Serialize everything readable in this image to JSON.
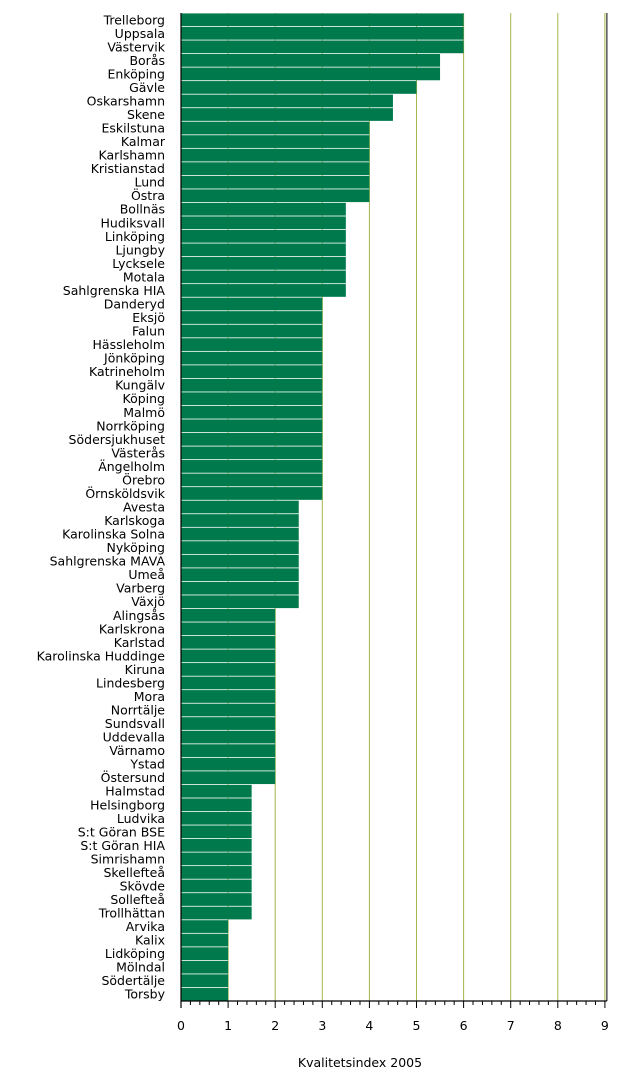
{
  "chart_data": {
    "type": "bar",
    "orientation": "horizontal",
    "xlabel": "Kvalitetsindex 2005",
    "xlim": [
      0,
      9
    ],
    "xticks": [
      "0",
      "1",
      "2",
      "3",
      "4",
      "5",
      "6",
      "7",
      "8",
      "9"
    ],
    "minor_tick_step": 0.2,
    "grid": "vertical lines at major ticks",
    "bar_color": "#007a4d",
    "grid_color": "#a4b54a",
    "categories": [
      "Trelleborg",
      "Uppsala",
      "Västervik",
      "Borås",
      "Enköping",
      "Gävle",
      "Oskarshamn",
      "Skene",
      "Eskilstuna",
      "Kalmar",
      "Karlshamn",
      "Kristianstad",
      "Lund",
      "Östra",
      "Bollnäs",
      "Hudiksvall",
      "Linköping",
      "Ljungby",
      "Lycksele",
      "Motala",
      "Sahlgrenska HIA",
      "Danderyd",
      "Eksjö",
      "Falun",
      "Hässleholm",
      "Jönköping",
      "Katrineholm",
      "Kungälv",
      "Köping",
      "Malmö",
      "Norrköping",
      "Södersjukhuset",
      "Västerås",
      "Ängelholm",
      "Örebro",
      "Örnsköldsvik",
      "Avesta",
      "Karlskoga",
      "Karolinska Solna",
      "Nyköping",
      "Sahlgrenska MAVA",
      "Umeå",
      "Varberg",
      "Växjö",
      "Alingsås",
      "Karlskrona",
      "Karlstad",
      "Karolinska Huddinge",
      "Kiruna",
      "Lindesberg",
      "Mora",
      "Norrtälje",
      "Sundsvall",
      "Uddevalla",
      "Värnamo",
      "Ystad",
      "Östersund",
      "Halmstad",
      "Helsingborg",
      "Ludvika",
      "S:t Göran BSE",
      "S:t Göran HIA",
      "Simrishamn",
      "Skellefteå",
      "Skövde",
      "Sollefteå",
      "Trollhättan",
      "Arvika",
      "Kalix",
      "Lidköping",
      "Mölndal",
      "Södertälje",
      "Torsby"
    ],
    "values": [
      6,
      6,
      6,
      5.5,
      5.5,
      5,
      4.5,
      4.5,
      4,
      4,
      4,
      4,
      4,
      4,
      3.5,
      3.5,
      3.5,
      3.5,
      3.5,
      3.5,
      3.5,
      3,
      3,
      3,
      3,
      3,
      3,
      3,
      3,
      3,
      3,
      3,
      3,
      3,
      3,
      3,
      2.5,
      2.5,
      2.5,
      2.5,
      2.5,
      2.5,
      2.5,
      2.5,
      2,
      2,
      2,
      2,
      2,
      2,
      2,
      2,
      2,
      2,
      2,
      2,
      2,
      1.5,
      1.5,
      1.5,
      1.5,
      1.5,
      1.5,
      1.5,
      1.5,
      1.5,
      1.5,
      1,
      1,
      1,
      1,
      1,
      1
    ]
  }
}
